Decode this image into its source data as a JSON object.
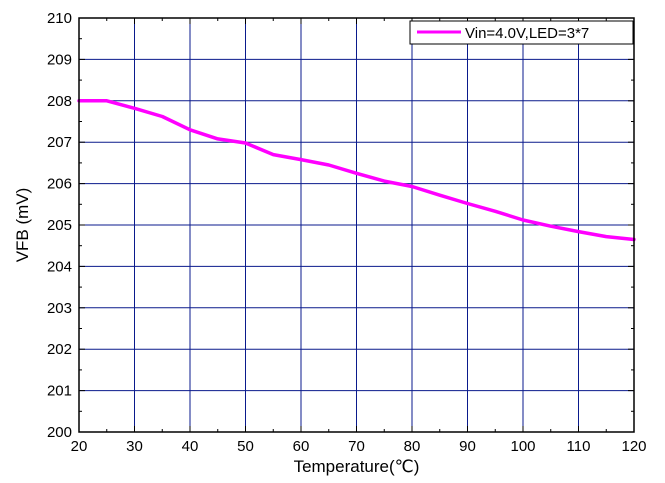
{
  "chart_data": {
    "type": "line",
    "title": "",
    "xlabel": "Temperature(℃)",
    "ylabel": "VFB (mV)",
    "xlim": [
      20,
      120
    ],
    "ylim": [
      200,
      210
    ],
    "xticks": [
      20,
      30,
      40,
      50,
      60,
      70,
      80,
      90,
      100,
      110,
      120
    ],
    "yticks": [
      200,
      201,
      202,
      203,
      204,
      205,
      206,
      207,
      208,
      209,
      210
    ],
    "x_tick_labels": [
      "20",
      "30",
      "40",
      "50",
      "60",
      "70",
      "80",
      "90",
      "100",
      "110",
      "120"
    ],
    "y_tick_labels": [
      "200",
      "201",
      "202",
      "203",
      "204",
      "205",
      "206",
      "207",
      "208",
      "209",
      "210"
    ],
    "grid": true,
    "legend_position": "top-right",
    "series": [
      {
        "name": "Vin=4.0V,LED=3*7",
        "color": "#ff00ff",
        "x": [
          20,
          25,
          30,
          35,
          40,
          45,
          50,
          55,
          60,
          65,
          70,
          75,
          80,
          85,
          90,
          95,
          100,
          105,
          110,
          115,
          120
        ],
        "y": [
          208.0,
          208.0,
          207.82,
          207.62,
          207.3,
          207.08,
          206.98,
          206.7,
          206.58,
          206.45,
          206.25,
          206.06,
          205.93,
          205.72,
          205.52,
          205.33,
          205.12,
          204.97,
          204.84,
          204.72,
          204.65
        ]
      }
    ]
  }
}
